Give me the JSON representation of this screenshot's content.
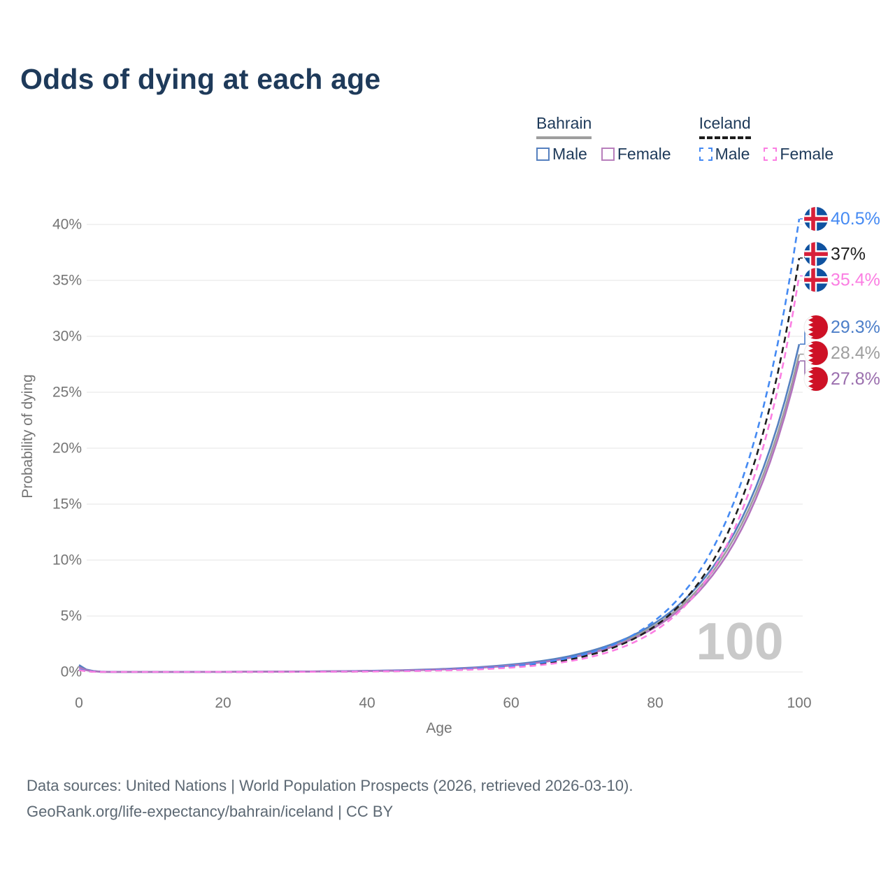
{
  "title": "Odds of dying at each age",
  "legend": {
    "groups": [
      {
        "label": "Bahrain",
        "line_style": "solid",
        "underline_color": "#9e9e9e",
        "items": [
          {
            "label": "Male",
            "color": "#5580bf"
          },
          {
            "label": "Female",
            "color": "#b87fbc"
          }
        ]
      },
      {
        "label": "Iceland",
        "line_style": "dashed",
        "underline_color": "#1c1c1c",
        "items": [
          {
            "label": "Male",
            "color": "#458af3"
          },
          {
            "label": "Female",
            "color": "#fb7ee2"
          }
        ]
      }
    ]
  },
  "chart_data": {
    "type": "line",
    "title": "Odds of dying at each age",
    "xlabel": "Age",
    "ylabel": "Probability of dying",
    "xlim": [
      0,
      100
    ],
    "ylim_pct": [
      0,
      42
    ],
    "x_ticks": [
      0,
      20,
      40,
      60,
      80,
      100
    ],
    "y_ticks": [
      {
        "value": 0,
        "label": "0%"
      },
      {
        "value": 5,
        "label": "5%"
      },
      {
        "value": 10,
        "label": "10%"
      },
      {
        "value": 15,
        "label": "15%"
      },
      {
        "value": 20,
        "label": "20%"
      },
      {
        "value": 25,
        "label": "25%"
      },
      {
        "value": 30,
        "label": "30%"
      },
      {
        "value": 35,
        "label": "35%"
      },
      {
        "value": 40,
        "label": "40%"
      }
    ],
    "grid": "horizontal-only",
    "watermark": "100",
    "ages": [
      0,
      5,
      10,
      15,
      20,
      25,
      30,
      35,
      40,
      45,
      50,
      55,
      60,
      65,
      70,
      75,
      80,
      85,
      90,
      95,
      100
    ],
    "series": [
      {
        "name": "Bahrain (both sexes)",
        "country": "Bahrain",
        "sex": "All",
        "color": "#9e9e9e",
        "label_color": "#9e9e9e",
        "dash": false,
        "flag": "bahrain-flag",
        "end_label": "28.4%",
        "values_pct": [
          0.52,
          0.0031,
          0.005,
          0.0081,
          0.0131,
          0.0212,
          0.034,
          0.055,
          0.09,
          0.145,
          0.234,
          0.378,
          0.61,
          0.99,
          1.6,
          2.58,
          4.17,
          6.73,
          10.9,
          17.6,
          28.4
        ]
      },
      {
        "name": "Bahrain Male",
        "country": "Bahrain",
        "sex": "Male",
        "color": "#5580bf",
        "label_color": "#4d7fc9",
        "dash": false,
        "flag": "bahrain-flag",
        "end_label": "29.3%",
        "values_pct": [
          0.62,
          0.0035,
          0.0057,
          0.0091,
          0.0147,
          0.0236,
          0.038,
          0.061,
          0.098,
          0.158,
          0.254,
          0.408,
          0.66,
          1.05,
          1.7,
          2.73,
          4.38,
          7.05,
          11.3,
          18.2,
          29.3
        ]
      },
      {
        "name": "Bahrain Female",
        "country": "Bahrain",
        "sex": "Female",
        "color": "#b273bd",
        "label_color": "#9b6fae",
        "dash": false,
        "flag": "bahrain-flag",
        "end_label": "27.8%",
        "values_pct": [
          0.42,
          0.0028,
          0.0045,
          0.0073,
          0.0119,
          0.0193,
          0.031,
          0.051,
          0.083,
          0.134,
          0.218,
          0.354,
          0.57,
          0.93,
          1.51,
          2.46,
          3.99,
          6.49,
          10.5,
          17.1,
          27.8
        ]
      },
      {
        "name": "Iceland (both sexes)",
        "country": "Iceland",
        "sex": "All",
        "color": "#1f1f1f",
        "label_color": "#1f1f1f",
        "dash": true,
        "flag": "iceland-flag",
        "end_label": "37%",
        "values_pct": [
          0.19,
          0.0011,
          0.0019,
          0.0032,
          0.0056,
          0.0097,
          0.017,
          0.029,
          0.05,
          0.087,
          0.151,
          0.262,
          0.45,
          0.79,
          1.37,
          2.37,
          4.1,
          7.11,
          12.3,
          21.4,
          37.0
        ]
      },
      {
        "name": "Iceland Male",
        "country": "Iceland",
        "sex": "Male",
        "color": "#458af3",
        "label_color": "#458af3",
        "dash": true,
        "flag": "iceland-flag",
        "end_label": "40.5%",
        "values_pct": [
          0.22,
          0.0013,
          0.0023,
          0.0039,
          0.0067,
          0.0116,
          0.02,
          0.034,
          0.059,
          0.102,
          0.176,
          0.304,
          0.52,
          0.9,
          1.55,
          2.67,
          4.61,
          7.94,
          13.7,
          23.6,
          40.5
        ]
      },
      {
        "name": "Iceland Female",
        "country": "Iceland",
        "sex": "Female",
        "color": "#fb7ee2",
        "label_color": "#fb7ee2",
        "dash": true,
        "flag": "iceland-flag",
        "end_label": "35.4%",
        "values_pct": [
          0.16,
          0.0008,
          0.0014,
          0.0024,
          0.0042,
          0.0074,
          0.013,
          0.023,
          0.04,
          0.071,
          0.125,
          0.219,
          0.39,
          0.68,
          1.19,
          2.1,
          3.69,
          6.5,
          11.4,
          20.1,
          35.4
        ]
      }
    ]
  },
  "colors": {
    "title": "#1e3a5a",
    "grid": "#e9e9e9",
    "tick_text": "#757575",
    "watermark": "#c9c9c9",
    "footer_text": "#5c6873",
    "iceland_flag_blue": "#0f52a0",
    "iceland_flag_red": "#d8203a",
    "bahrain_flag_red": "#ce1126"
  },
  "footer": {
    "line1": "Data sources: United Nations | World Population Prospects (2026, retrieved 2026-03-10).",
    "line2": "GeoRank.org/life-expectancy/bahrain/iceland | CC BY"
  }
}
